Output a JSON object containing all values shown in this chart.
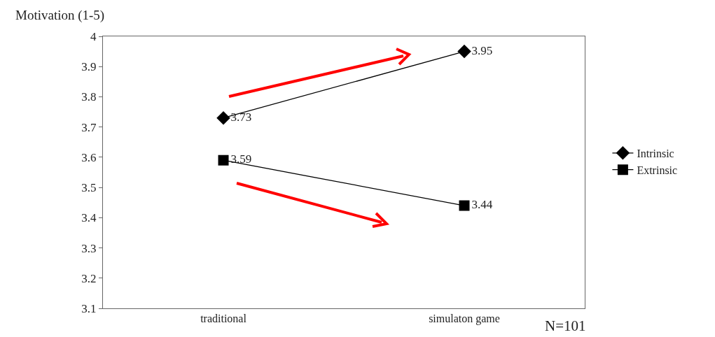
{
  "chart_data": {
    "type": "line",
    "ylabel": "Motivation (1-5)",
    "categories": [
      "traditional",
      "simulaton game"
    ],
    "series": [
      {
        "name": "Intrinsic",
        "color": "#000000",
        "marker": "diamond",
        "values": [
          3.73,
          3.95
        ]
      },
      {
        "name": "Extrinsic",
        "color": "#000000",
        "marker": "square",
        "values": [
          3.59,
          3.44
        ]
      }
    ],
    "ylim": [
      3.1,
      4
    ],
    "yticks": [
      3.1,
      3.2,
      3.3,
      3.4,
      3.5,
      3.6,
      3.7,
      3.8,
      3.9,
      4
    ],
    "grid": false,
    "legend": "right",
    "data_labels": true,
    "line_style": "solid",
    "annotations": [
      "N=101"
    ]
  }
}
